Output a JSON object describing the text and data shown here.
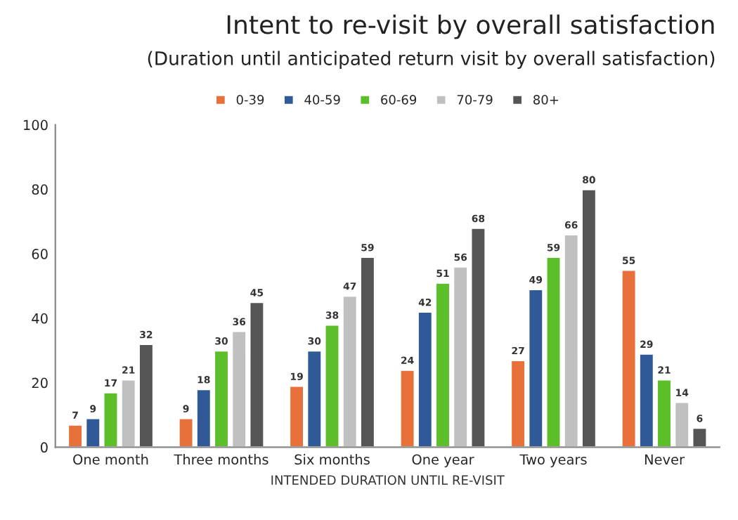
{
  "chart_data": {
    "type": "bar",
    "title": "Intent to re-visit by overall satisfaction",
    "subtitle": "(Duration until anticipated return visit by overall satisfaction)",
    "xlabel": "INTENDED DURATION UNTIL RE-VISIT",
    "categories": [
      "One month",
      "Three months",
      "Six months",
      "One year",
      "Two years",
      "Never"
    ],
    "series": [
      {
        "name": "0-39",
        "color": "#e8703a",
        "values": [
          7,
          9,
          19,
          24,
          27,
          55
        ]
      },
      {
        "name": "40-59",
        "color": "#2f5a97",
        "values": [
          9,
          18,
          30,
          42,
          49,
          29
        ]
      },
      {
        "name": "60-69",
        "color": "#5cbf2a",
        "values": [
          17,
          30,
          38,
          51,
          59,
          21
        ]
      },
      {
        "name": "70-79",
        "color": "#c0c0c0",
        "values": [
          21,
          36,
          47,
          56,
          66,
          14
        ]
      },
      {
        "name": "80+",
        "color": "#555555",
        "values": [
          32,
          45,
          59,
          68,
          80,
          6
        ]
      }
    ],
    "ylim": [
      0,
      100
    ],
    "yticks": [
      0,
      20,
      40,
      60,
      80,
      100
    ],
    "grid": false,
    "legend": "top",
    "data_labels": true
  }
}
